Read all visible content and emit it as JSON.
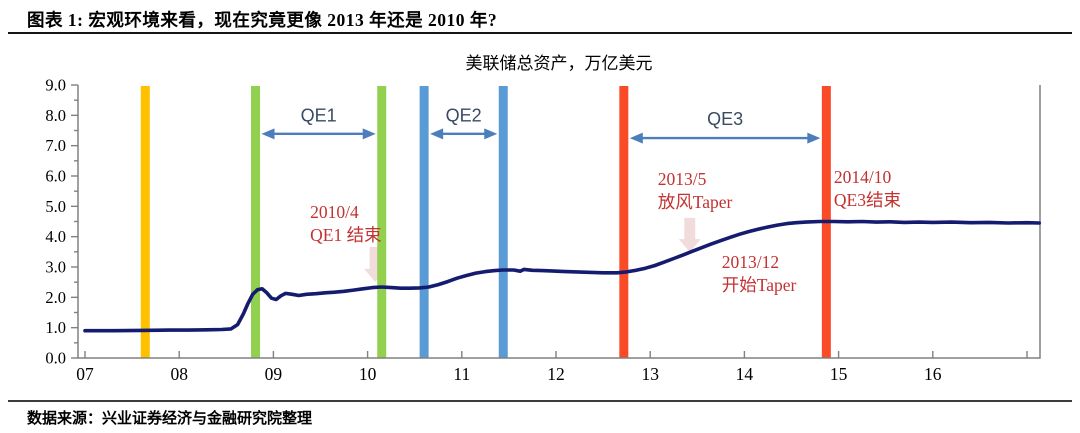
{
  "header": {
    "title": "图表 1: 宏观环境来看，现在究竟更像 2013 年还是 2010 年?"
  },
  "footer": {
    "source": "数据来源：兴业证券经济与金融研究院整理"
  },
  "chart_data": {
    "type": "line",
    "title": "美联储总资产，万亿美元",
    "xlabel": "",
    "ylabel": "",
    "ylim": [
      0,
      9
    ],
    "ytick_step": 1,
    "ytick_labels": [
      "0.0",
      "1.0",
      "2.0",
      "3.0",
      "4.0",
      "5.0",
      "6.0",
      "7.0",
      "8.0",
      "9.0"
    ],
    "x_range": [
      7,
      17.13
    ],
    "xticks": [
      7,
      8,
      9,
      10,
      11,
      12,
      13,
      14,
      15,
      16,
      17
    ],
    "xtick_labels": [
      "07",
      "08",
      "09",
      "10",
      "11",
      "12",
      "13",
      "14",
      "15",
      "16",
      ""
    ],
    "grid": false,
    "legend": "none",
    "colors": {
      "line": "#151C70",
      "axis": "#808080",
      "tick_label": "#000000",
      "qe_label": "#3A4A63",
      "span_arrow": "#4D7EBB",
      "annotation": "#C43131",
      "down_arrow": "#F2DCDB"
    },
    "series": [
      {
        "name": "美联储总资产",
        "color": "#151C70",
        "points": [
          [
            7.0,
            0.9
          ],
          [
            7.3,
            0.9
          ],
          [
            7.6,
            0.91
          ],
          [
            7.9,
            0.92
          ],
          [
            8.1,
            0.92
          ],
          [
            8.3,
            0.93
          ],
          [
            8.45,
            0.94
          ],
          [
            8.55,
            0.96
          ],
          [
            8.62,
            1.1
          ],
          [
            8.68,
            1.45
          ],
          [
            8.73,
            1.8
          ],
          [
            8.78,
            2.1
          ],
          [
            8.83,
            2.25
          ],
          [
            8.88,
            2.28
          ],
          [
            8.93,
            2.15
          ],
          [
            8.98,
            1.97
          ],
          [
            9.03,
            1.93
          ],
          [
            9.08,
            2.05
          ],
          [
            9.13,
            2.13
          ],
          [
            9.2,
            2.1
          ],
          [
            9.27,
            2.06
          ],
          [
            9.35,
            2.1
          ],
          [
            9.45,
            2.12
          ],
          [
            9.55,
            2.15
          ],
          [
            9.65,
            2.17
          ],
          [
            9.75,
            2.2
          ],
          [
            9.85,
            2.24
          ],
          [
            9.95,
            2.28
          ],
          [
            10.05,
            2.32
          ],
          [
            10.15,
            2.34
          ],
          [
            10.25,
            2.32
          ],
          [
            10.35,
            2.3
          ],
          [
            10.45,
            2.3
          ],
          [
            10.55,
            2.31
          ],
          [
            10.65,
            2.34
          ],
          [
            10.75,
            2.42
          ],
          [
            10.85,
            2.52
          ],
          [
            10.95,
            2.63
          ],
          [
            11.05,
            2.72
          ],
          [
            11.15,
            2.8
          ],
          [
            11.25,
            2.85
          ],
          [
            11.35,
            2.88
          ],
          [
            11.44,
            2.9
          ],
          [
            11.55,
            2.9
          ],
          [
            11.62,
            2.86
          ],
          [
            11.66,
            2.92
          ],
          [
            11.75,
            2.89
          ],
          [
            11.85,
            2.88
          ],
          [
            11.95,
            2.87
          ],
          [
            12.1,
            2.85
          ],
          [
            12.3,
            2.83
          ],
          [
            12.5,
            2.81
          ],
          [
            12.65,
            2.81
          ],
          [
            12.75,
            2.84
          ],
          [
            12.85,
            2.89
          ],
          [
            12.95,
            2.96
          ],
          [
            13.05,
            3.05
          ],
          [
            13.15,
            3.16
          ],
          [
            13.25,
            3.28
          ],
          [
            13.35,
            3.4
          ],
          [
            13.45,
            3.52
          ],
          [
            13.55,
            3.64
          ],
          [
            13.65,
            3.76
          ],
          [
            13.75,
            3.87
          ],
          [
            13.85,
            3.98
          ],
          [
            13.95,
            4.08
          ],
          [
            14.05,
            4.17
          ],
          [
            14.15,
            4.25
          ],
          [
            14.25,
            4.32
          ],
          [
            14.35,
            4.38
          ],
          [
            14.45,
            4.43
          ],
          [
            14.55,
            4.46
          ],
          [
            14.65,
            4.48
          ],
          [
            14.8,
            4.5
          ],
          [
            14.95,
            4.5
          ],
          [
            15.1,
            4.49
          ],
          [
            15.25,
            4.5
          ],
          [
            15.4,
            4.48
          ],
          [
            15.55,
            4.49
          ],
          [
            15.7,
            4.47
          ],
          [
            15.85,
            4.48
          ],
          [
            16.0,
            4.47
          ],
          [
            16.2,
            4.48
          ],
          [
            16.4,
            4.46
          ],
          [
            16.6,
            4.47
          ],
          [
            16.8,
            4.45
          ],
          [
            17.0,
            4.46
          ],
          [
            17.13,
            4.45
          ]
        ]
      }
    ],
    "event_bars": [
      {
        "name": "crisis-2007-bar",
        "x": 7.64,
        "color": "#FFC000"
      },
      {
        "name": "qe1-start-bar",
        "x": 8.81,
        "color": "#92D050"
      },
      {
        "name": "qe1-end-bar",
        "x": 10.15,
        "color": "#92D050"
      },
      {
        "name": "qe2-start-bar",
        "x": 10.6,
        "color": "#5B9BD5"
      },
      {
        "name": "qe2-end-bar",
        "x": 11.44,
        "color": "#5B9BD5"
      },
      {
        "name": "qe3-start-bar",
        "x": 12.72,
        "color": "#FA4B28"
      },
      {
        "name": "qe3-end-bar",
        "x": 14.87,
        "color": "#FA4B28"
      }
    ],
    "qe_spans": [
      {
        "label": "QE1",
        "from": 8.81,
        "to": 10.15,
        "arrow_v": 7.39,
        "label_v": 7.8
      },
      {
        "label": "QE2",
        "from": 10.6,
        "to": 11.44,
        "arrow_v": 7.39,
        "label_v": 7.8
      },
      {
        "label": "QE3",
        "from": 12.72,
        "to": 14.87,
        "arrow_v": 7.25,
        "label_v": 7.68
      }
    ],
    "annotations": [
      {
        "name": "qe1-end-note",
        "lines": [
          "2010/4",
          "QE1 结束"
        ],
        "x": 9.39,
        "v": 4.62
      },
      {
        "name": "taper-hint-note",
        "lines": [
          "2013/5",
          "放风Taper"
        ],
        "x": 13.08,
        "v": 5.7
      },
      {
        "name": "taper-start-note",
        "lines": [
          "2013/12",
          "开始Taper"
        ],
        "x": 13.76,
        "v": 2.97
      },
      {
        "name": "qe3-end-note",
        "lines": [
          "2014/10",
          "QE3结束"
        ],
        "x": 14.95,
        "v": 5.77
      }
    ],
    "down_arrows": [
      {
        "name": "qe1-end-down-arrow",
        "x": 10.08,
        "v_top": 3.66,
        "v_bottom": 2.51
      },
      {
        "name": "taper-hint-down-arrow",
        "x": 13.42,
        "v_top": 4.62,
        "v_bottom": 3.49
      }
    ]
  }
}
